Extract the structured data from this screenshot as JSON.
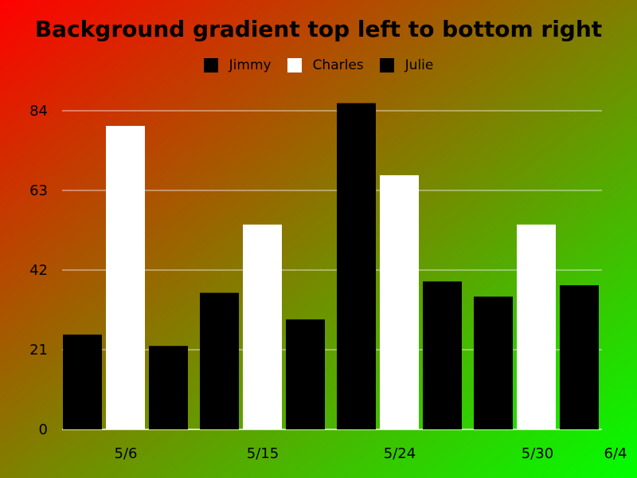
{
  "chart_data": {
    "type": "bar",
    "title": "Background gradient top left to bottom right",
    "background": {
      "gradient": "top-left to bottom-right",
      "from": "#ff0000",
      "to": "#00ff00"
    },
    "categories": [
      "5/6",
      "5/15",
      "5/24",
      "5/30"
    ],
    "x_ticks": [
      "5/6",
      "5/15",
      "5/24",
      "5/30",
      "6/4"
    ],
    "y_ticks": [
      0,
      21,
      42,
      63,
      84
    ],
    "ylim": [
      0,
      84
    ],
    "grid": true,
    "legend_position": "top-center",
    "series": [
      {
        "name": "Jimmy",
        "color": "#000000",
        "values": [
          25,
          36,
          86,
          35
        ]
      },
      {
        "name": "Charles",
        "color": "#ffffff",
        "values": [
          80,
          54,
          67,
          54
        ]
      },
      {
        "name": "Julie",
        "color": "#000000",
        "values": [
          22,
          29,
          39,
          38
        ]
      }
    ]
  }
}
